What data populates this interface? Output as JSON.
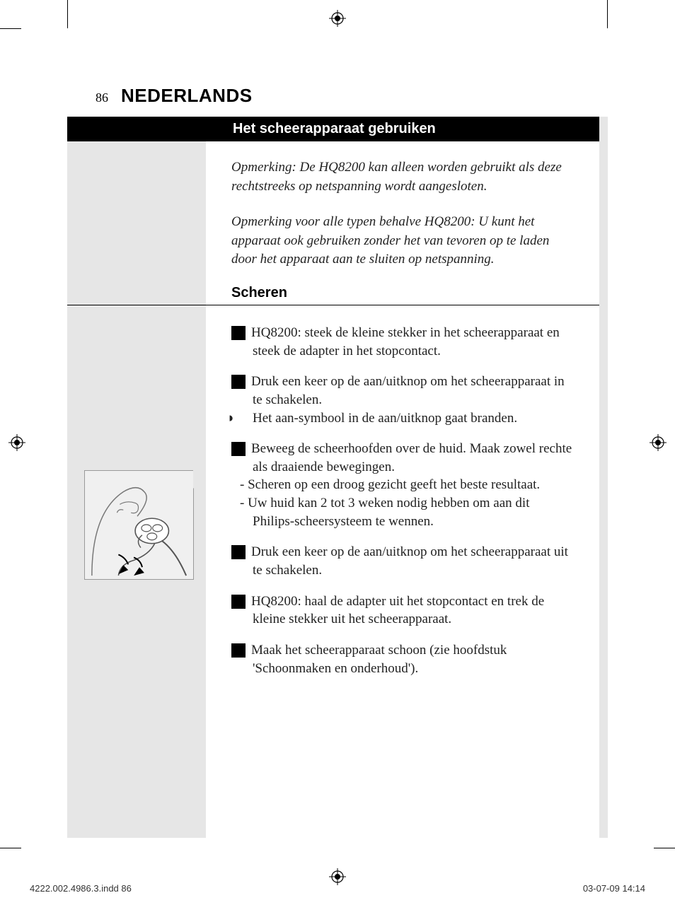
{
  "page_number": "86",
  "language_header": "NEDERLANDS",
  "section_title": "Het scheerapparaat gebruiken",
  "note1": "Opmerking: De HQ8200 kan alleen worden gebruikt als deze rechtstreeks op netspanning wordt aangesloten.",
  "note2": "Opmerking voor alle typen behalve HQ8200: U kunt het apparaat ook gebruiken zonder het van tevoren op te laden door het apparaat aan te sluiten op netspanning.",
  "subheading": "Scheren",
  "steps": [
    {
      "num": "1",
      "text": "HQ8200: steek de kleine stekker in het scheerapparaat en steek de adapter in het stopcontact."
    },
    {
      "num": "2",
      "text": "Druk een keer op de aan/uitknop om het scheerapparaat in te schakelen.",
      "bullets": [
        "Het aan-symbool in de aan/uitknop gaat branden."
      ]
    },
    {
      "num": "3",
      "text": "Beweeg de scheerhoofden over de huid. Maak zowel rechte als draaiende bewegingen.",
      "dashes": [
        "Scheren op een droog gezicht geeft het beste resultaat.",
        "Uw huid kan 2 tot 3 weken nodig hebben om aan dit Philips-scheersysteem te wennen."
      ]
    },
    {
      "num": "4",
      "text": "Druk een keer op de aan/uitknop om het scheerapparaat uit te schakelen."
    },
    {
      "num": "5",
      "text": "HQ8200: haal de adapter uit het stopcontact en trek de kleine stekker uit het scheerapparaat."
    },
    {
      "num": "6",
      "text": "Maak het scheerapparaat schoon (zie hoofdstuk 'Schoonmaken en onderhoud')."
    }
  ],
  "footer_left": "4222.002.4986.3.indd   86",
  "footer_right": "03-07-09   14:14"
}
